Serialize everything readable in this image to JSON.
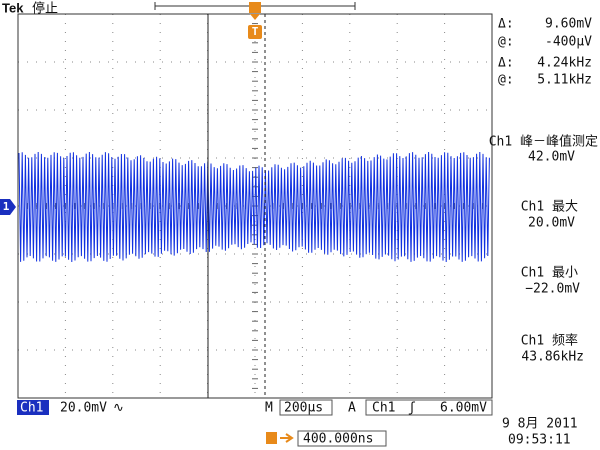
{
  "header": {
    "brand": "Tek",
    "status": "停止"
  },
  "cursors": [
    {
      "delta_label": "Δ:",
      "delta": "9.60mV",
      "at_label": "@:",
      "at": "-400µV"
    },
    {
      "delta_label": "Δ:",
      "delta": "4.24kHz",
      "at_label": "@:",
      "at": "5.11kHz"
    }
  ],
  "measurements": [
    {
      "name": "Ch1 峰－峰值测定",
      "value": "42.0mV"
    },
    {
      "name": "Ch1 最大",
      "value": "20.0mV"
    },
    {
      "name": "Ch1 最小",
      "value": "−22.0mV"
    },
    {
      "name": "Ch1 频率",
      "value": "43.86kHz"
    }
  ],
  "footer": {
    "channel": "Ch1",
    "scale": "20.0mV",
    "coupling": "∿",
    "timebase_label": "M",
    "timebase": "200µs",
    "trigger_label": "A",
    "trigger_source": "Ch1",
    "trigger_slope": "ʃ",
    "trigger_level": "6.00mV",
    "trigger_position": "400.000ns",
    "date": "9 8月  2011",
    "time": "09:53:11"
  },
  "markers": {
    "channel": "1",
    "trigger": "T"
  }
}
